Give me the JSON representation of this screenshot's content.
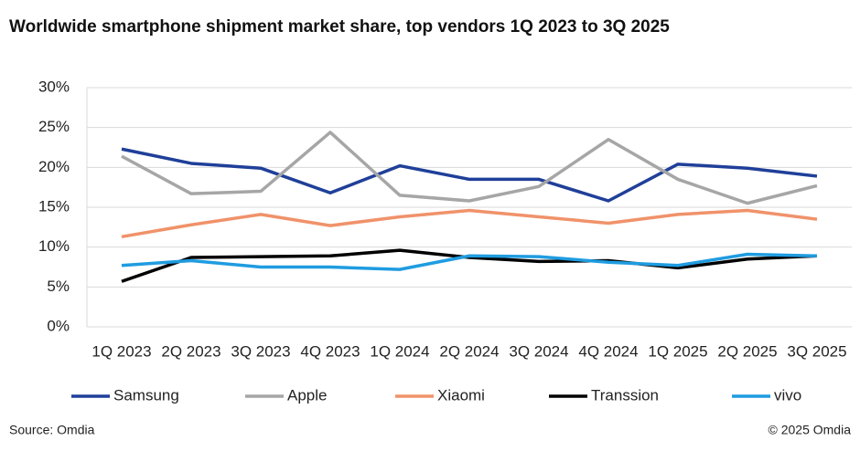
{
  "chart_data": {
    "type": "line",
    "title": "Worldwide smartphone shipment market share, top vendors 1Q 2023 to 3Q 2025",
    "source": "Source: Omdia",
    "copyright": "© 2025 Omdia",
    "categories": [
      "1Q 2023",
      "2Q 2023",
      "3Q 2023",
      "4Q 2023",
      "1Q 2024",
      "2Q 2024",
      "3Q 2024",
      "4Q 2024",
      "1Q 2025",
      "2Q 2025",
      "3Q 2025"
    ],
    "series": [
      {
        "name": "Samsung",
        "color": "#1f3f99",
        "values": [
          22.3,
          20.5,
          19.9,
          16.8,
          20.2,
          18.5,
          18.5,
          15.8,
          20.4,
          19.9,
          18.9
        ]
      },
      {
        "name": "Apple",
        "color": "#a6a6a6",
        "values": [
          21.4,
          16.7,
          17.0,
          24.4,
          16.5,
          15.8,
          17.6,
          23.5,
          18.5,
          15.5,
          17.7
        ]
      },
      {
        "name": "Xiaomi",
        "color": "#f0926a",
        "values": [
          11.3,
          12.8,
          14.1,
          12.7,
          13.8,
          14.6,
          13.8,
          13.0,
          14.1,
          14.6,
          13.5
        ]
      },
      {
        "name": "Transsion",
        "color": "#000000",
        "values": [
          5.7,
          8.7,
          8.8,
          8.9,
          9.6,
          8.7,
          8.2,
          8.3,
          7.4,
          8.5,
          8.9
        ]
      },
      {
        "name": "vivo",
        "color": "#1f9ce0",
        "values": [
          7.7,
          8.3,
          7.5,
          7.5,
          7.2,
          8.9,
          8.8,
          8.1,
          7.7,
          9.1,
          8.9
        ]
      }
    ],
    "ylim": [
      0,
      30
    ],
    "yticks": [
      {
        "value": 0,
        "label": "0%"
      },
      {
        "value": 5,
        "label": "5%"
      },
      {
        "value": 10,
        "label": "10%"
      },
      {
        "value": 15,
        "label": "15%"
      },
      {
        "value": 20,
        "label": "20%"
      },
      {
        "value": 25,
        "label": "25%"
      },
      {
        "value": 30,
        "label": "30%"
      }
    ],
    "grid": true,
    "legend": "bottom"
  }
}
